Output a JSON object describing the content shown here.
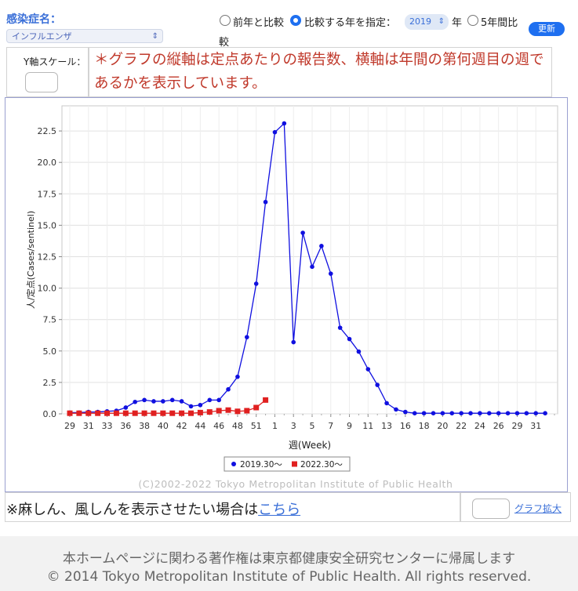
{
  "controls": {
    "disease_label": "感染症名：",
    "disease_selected": "インフルエンザ",
    "option_prev_year": "前年と比較",
    "option_specify_year": "比較する年を指定：",
    "year_selected": "2019",
    "year_suffix": "年",
    "option_five_year": "5年間比",
    "option_five_year_wrap": "較",
    "update_button": "更新",
    "selected_option": "specify_year"
  },
  "y_scale": {
    "label": "Y軸スケール：",
    "value": ""
  },
  "notice": {
    "text": "＊グラフの縦軸は定点あたりの報告数、横軸は年間の第何週目の週であるかを表示しています。"
  },
  "chart_data": {
    "type": "line",
    "title": "",
    "xlabel": "週(Week)",
    "ylabel": "人/定点(Cases/sentinel)",
    "ylim": [
      0,
      24.5
    ],
    "yticks": [
      "0.0",
      "2.5",
      "5.0",
      "7.5",
      "10.0",
      "12.5",
      "15.0",
      "17.5",
      "20.0",
      "22.5"
    ],
    "x_tick_labels": [
      "29",
      "31",
      "33",
      "36",
      "38",
      "40",
      "42",
      "44",
      "46",
      "48",
      "51",
      "1",
      "3",
      "5",
      "7",
      "9",
      "11",
      "13",
      "16",
      "18",
      "20",
      "22",
      "24",
      "26",
      "29",
      "31"
    ],
    "grid": true,
    "legend_position": "bottom-center",
    "copyright": "(C)2002-2022 Tokyo Metropolitan Institute of Public Health",
    "series": [
      {
        "name": "2019.30〜",
        "color": "#1010e0",
        "marker": "circle",
        "values": [
          0.1,
          0.1,
          0.15,
          0.15,
          0.2,
          0.25,
          0.5,
          0.95,
          1.1,
          1.0,
          1.0,
          1.1,
          1.0,
          0.6,
          0.7,
          1.1,
          1.1,
          1.95,
          2.95,
          6.1,
          10.35,
          16.85,
          22.4,
          23.1,
          5.7,
          14.4,
          11.7,
          13.35,
          11.15,
          6.85,
          5.95,
          4.95,
          3.55,
          2.3,
          0.85,
          0.35,
          0.15,
          0.05,
          0.05,
          0.05,
          0.05,
          0.05,
          0.05,
          0.05,
          0.05,
          0.05,
          0.05,
          0.05,
          0.05,
          0.05,
          0.05,
          0.05
        ]
      },
      {
        "name": "2022.30〜",
        "color": "#e02020",
        "marker": "square",
        "values": [
          0.05,
          0.05,
          0.05,
          0.05,
          0.05,
          0.05,
          0.05,
          0.05,
          0.05,
          0.05,
          0.05,
          0.05,
          0.05,
          0.05,
          0.1,
          0.15,
          0.25,
          0.3,
          0.2,
          0.25,
          0.5,
          1.1
        ]
      }
    ]
  },
  "bottom": {
    "note_prefix": "※麻しん、風しんを表示させたい場合は",
    "note_link": "こちら",
    "zoom_link": "グラフ拡大"
  },
  "footer": {
    "line1": "本ホームページに関わる著作権は東京都健康安全研究センターに帰属します",
    "line2": "© 2014 Tokyo Metropolitan Institute of Public Health. All rights reserved."
  }
}
